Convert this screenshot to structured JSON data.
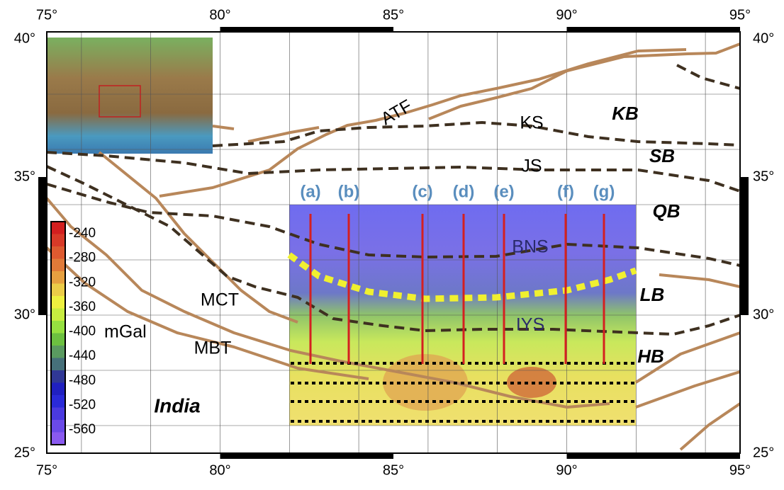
{
  "map": {
    "xticks": [
      {
        "value": 75,
        "label": "75°"
      },
      {
        "value": 80,
        "label": "80°"
      },
      {
        "value": 85,
        "label": "85°"
      },
      {
        "value": 90,
        "label": "90°"
      },
      {
        "value": 95,
        "label": "95°"
      }
    ],
    "yticks": [
      {
        "value": 25,
        "label": "25°"
      },
      {
        "value": 30,
        "label": "30°"
      },
      {
        "value": 35,
        "label": "35°"
      },
      {
        "value": 40,
        "label": "40°"
      }
    ],
    "grid_lon": [
      76,
      78,
      80,
      82,
      84,
      86,
      88,
      90,
      92,
      94
    ],
    "grid_lat": [
      26,
      28,
      30,
      32,
      34,
      36,
      38
    ],
    "profiles": [
      "(a)",
      "(b)",
      "(c)",
      "(d)",
      "(e)",
      "(f)",
      "(g)"
    ],
    "faults": [
      "ATF",
      "KS",
      "JS",
      "BNS",
      "IYS",
      "MCT",
      "MBT"
    ],
    "blocks": [
      "KB",
      "SB",
      "QB",
      "LB",
      "HB"
    ],
    "region": "India",
    "colorbar": {
      "ticks": [
        -240,
        -280,
        -320,
        -360,
        -400,
        -440,
        -480,
        -520,
        -560
      ],
      "unit": "mGal"
    }
  }
}
